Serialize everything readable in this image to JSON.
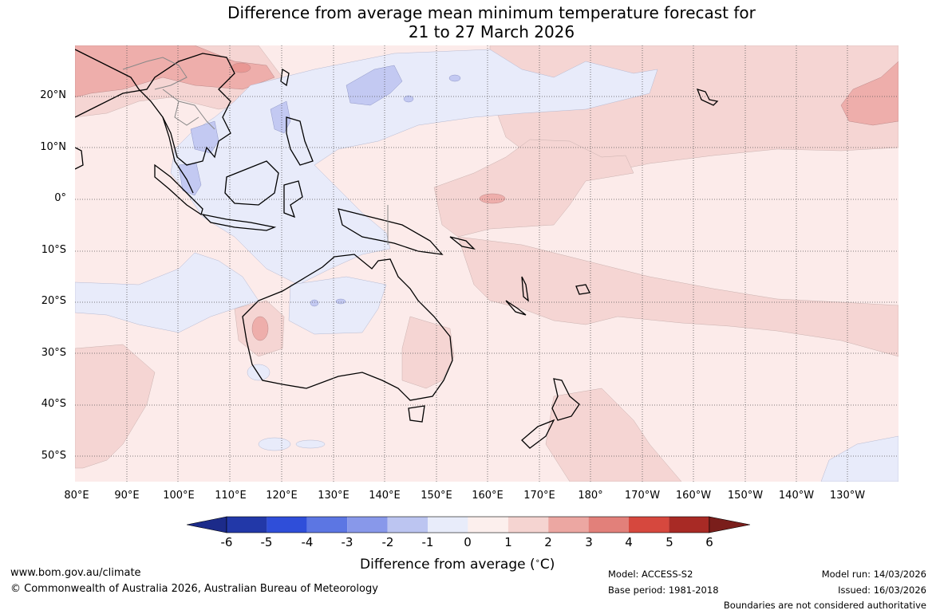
{
  "title_line1": "Difference from average mean minimum temperature forecast for",
  "title_line2": "21 to 27 March 2026",
  "map": {
    "lat_labels": [
      "20°N",
      "10°N",
      "0°",
      "10°S",
      "20°S",
      "30°S",
      "40°S",
      "50°S"
    ],
    "lon_labels": [
      "80°E",
      "90°E",
      "100°E",
      "110°E",
      "120°E",
      "130°E",
      "140°E",
      "150°E",
      "160°E",
      "170°E",
      "180°",
      "170°W",
      "160°W",
      "150°W",
      "140°W",
      "130°W"
    ],
    "colors": {
      "plus_0_1": "#fcebea",
      "plus_1_2": "#f5d5d3",
      "plus_2_3": "#eeaeab",
      "minus_0_1": "#e8ebfa",
      "minus_1_2": "#c3c9f2",
      "coast": "#000000",
      "border": "#888888"
    }
  },
  "colorbar": {
    "ticks": [
      "-6",
      "-5",
      "-4",
      "-3",
      "-2",
      "-1",
      "0",
      "1",
      "2",
      "3",
      "4",
      "5",
      "6"
    ],
    "colors": [
      "#1c2b8a",
      "#2238a8",
      "#2f4ed9",
      "#5c76e3",
      "#8898ea",
      "#bcc5f1",
      "#e8ecfa",
      "#fcefed",
      "#f5d4d1",
      "#eca7a2",
      "#e2807a",
      "#d6483e",
      "#a82a25",
      "#7a1e1b"
    ],
    "label": "Difference from average (",
    "label_unit": "C)",
    "label_degree": "∘"
  },
  "footer": {
    "website": "www.bom.gov.au/climate",
    "copyright": "© Commonwealth of Australia 2026, Australian Bureau of Meteorology",
    "model": "Model: ACCESS-S2",
    "base_period": "Base period: 1981-2018",
    "model_run": "Model run: 14/03/2026",
    "issued": "Issued: 16/03/2026",
    "disclaimer": "Boundaries are not considered authoritative"
  }
}
